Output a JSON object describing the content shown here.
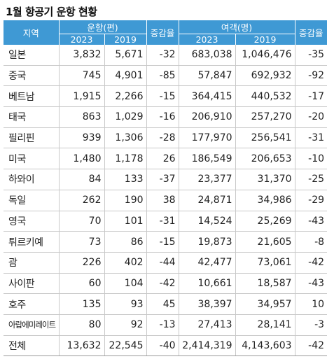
{
  "title": "1월 항공기 운항 현황",
  "headers": {
    "region": "지역",
    "flights": "운항(편)",
    "passengers": "여객(명)",
    "change": "증감율",
    "y2023": "2023",
    "y2019": "2019"
  },
  "rows": [
    {
      "region": "일본",
      "f2023": "3,832",
      "f2019": "5,671",
      "fchg": "-32",
      "p2023": "683,038",
      "p2019": "1,046,476",
      "pchg": "-35"
    },
    {
      "region": "중국",
      "f2023": "745",
      "f2019": "4,901",
      "fchg": "-85",
      "p2023": "57,847",
      "p2019": "692,932",
      "pchg": "-92"
    },
    {
      "region": "베트남",
      "f2023": "1,915",
      "f2019": "2,266",
      "fchg": "-15",
      "p2023": "364,415",
      "p2019": "440,532",
      "pchg": "-17"
    },
    {
      "region": "태국",
      "f2023": "863",
      "f2019": "1,029",
      "fchg": "-16",
      "p2023": "206,910",
      "p2019": "257,270",
      "pchg": "-20"
    },
    {
      "region": "필리핀",
      "f2023": "939",
      "f2019": "1,306",
      "fchg": "-28",
      "p2023": "177,970",
      "p2019": "256,541",
      "pchg": "-31"
    },
    {
      "region": "미국",
      "f2023": "1,480",
      "f2019": "1,178",
      "fchg": "26",
      "p2023": "186,549",
      "p2019": "206,653",
      "pchg": "-10"
    },
    {
      "region": "하와이",
      "f2023": "84",
      "f2019": "133",
      "fchg": "-37",
      "p2023": "23,377",
      "p2019": "31,370",
      "pchg": "-25"
    },
    {
      "region": "독일",
      "f2023": "262",
      "f2019": "190",
      "fchg": "38",
      "p2023": "24,871",
      "p2019": "34,986",
      "pchg": "-29"
    },
    {
      "region": "영국",
      "f2023": "70",
      "f2019": "101",
      "fchg": "-31",
      "p2023": "14,524",
      "p2019": "25,269",
      "pchg": "-43"
    },
    {
      "region": "튀르키예",
      "f2023": "73",
      "f2019": "86",
      "fchg": "-15",
      "p2023": "19,873",
      "p2019": "21,605",
      "pchg": "-8"
    },
    {
      "region": "괌",
      "f2023": "226",
      "f2019": "402",
      "fchg": "-44",
      "p2023": "42,477",
      "p2019": "73,061",
      "pchg": "-42"
    },
    {
      "region": "사이판",
      "f2023": "60",
      "f2019": "104",
      "fchg": "-42",
      "p2023": "10,661",
      "p2019": "18,587",
      "pchg": "-43"
    },
    {
      "region": "호주",
      "f2023": "135",
      "f2019": "93",
      "fchg": "45",
      "p2023": "38,397",
      "p2019": "34,957",
      "pchg": "10"
    },
    {
      "region": "아랍에미레이트",
      "f2023": "80",
      "f2019": "92",
      "fchg": "-13",
      "p2023": "27,413",
      "p2019": "28,141",
      "pchg": "-3"
    }
  ],
  "total": {
    "region": "전체",
    "f2023": "13,632",
    "f2019": "22,545",
    "fchg": "-40",
    "p2023": "2,414,319",
    "p2019": "4,143,603",
    "pchg": "-42"
  }
}
